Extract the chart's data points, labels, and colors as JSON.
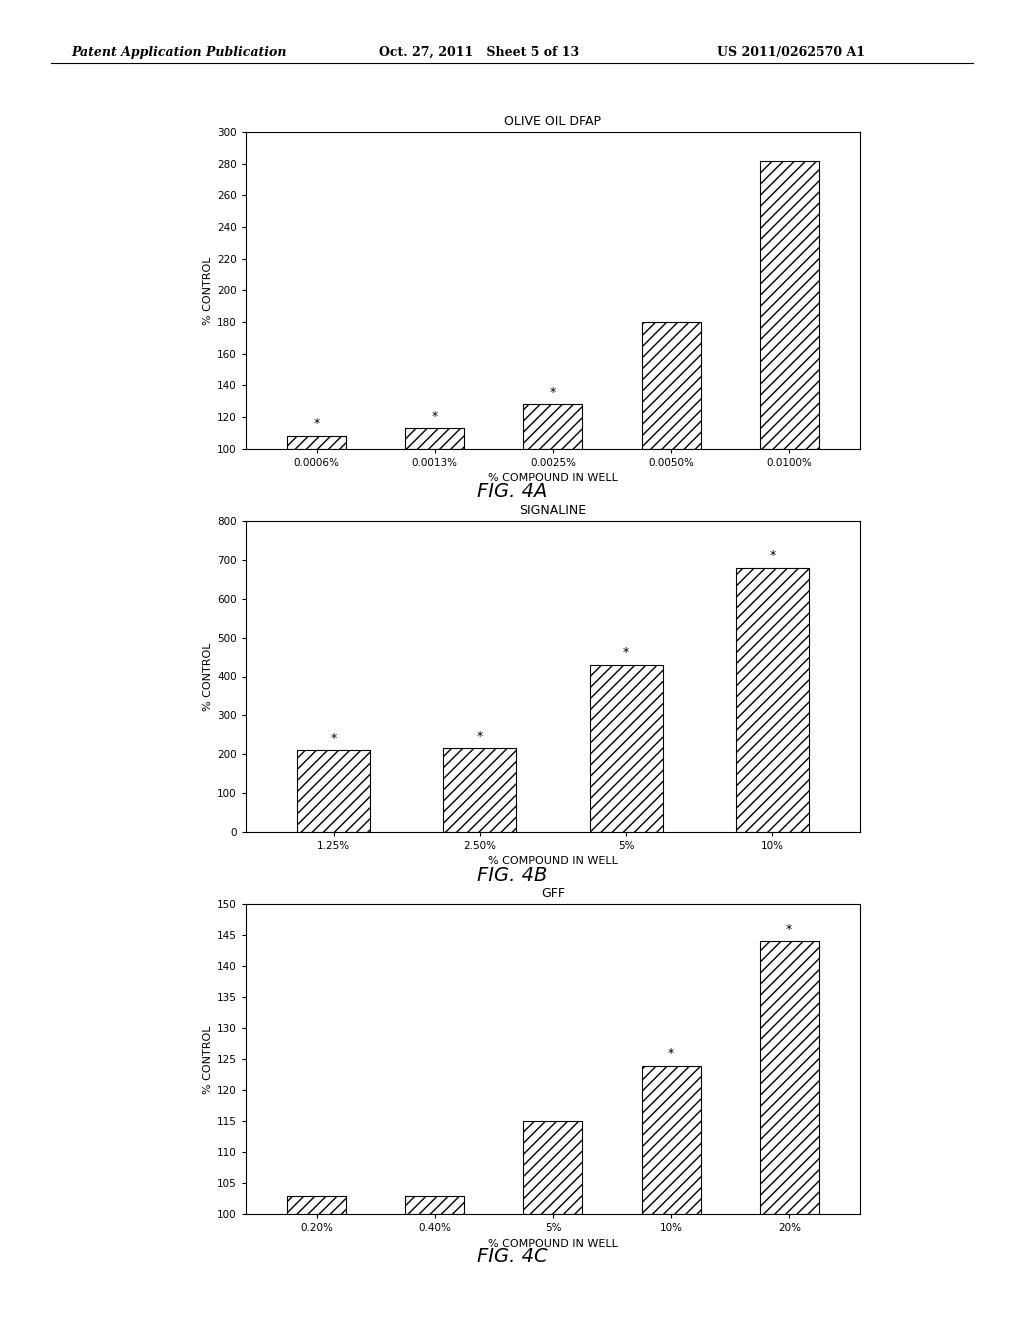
{
  "fig4a": {
    "title": "OLIVE OIL DFAP",
    "categories": [
      "0.0006%",
      "0.0013%",
      "0.0025%",
      "0.0050%",
      "0.0100%"
    ],
    "values": [
      108,
      113,
      128,
      180,
      282
    ],
    "star_flags": [
      true,
      true,
      true,
      false,
      false
    ],
    "ylabel": "% CONTROL",
    "xlabel": "% COMPOUND IN WELL",
    "ylim": [
      100,
      300
    ],
    "yticks": [
      100,
      120,
      140,
      160,
      180,
      200,
      220,
      240,
      260,
      280,
      300
    ],
    "caption": "FIG. 4A"
  },
  "fig4b": {
    "title": "SIGNALINE",
    "categories": [
      "1.25%",
      "2.50%",
      "5%",
      "10%"
    ],
    "values": [
      210,
      215,
      430,
      680
    ],
    "star_flags": [
      true,
      true,
      true,
      true
    ],
    "ylabel": "% CONTROL",
    "xlabel": "% COMPOUND IN WELL",
    "ylim": [
      0,
      800
    ],
    "yticks": [
      0,
      100,
      200,
      300,
      400,
      500,
      600,
      700,
      800
    ],
    "caption": "FIG. 4B"
  },
  "fig4c": {
    "title": "GFF",
    "categories": [
      "0.20%",
      "0.40%",
      "5%",
      "10%",
      "20%"
    ],
    "values": [
      103,
      103,
      115,
      124,
      144
    ],
    "star_flags": [
      false,
      false,
      false,
      true,
      true
    ],
    "ylabel": "% CONTROL",
    "xlabel": "% COMPOUND IN WELL",
    "ylim": [
      100,
      150
    ],
    "yticks": [
      100,
      105,
      110,
      115,
      120,
      125,
      130,
      135,
      140,
      145,
      150
    ],
    "caption": "FIG. 4C"
  },
  "header_left": "Patent Application Publication",
  "header_center": "Oct. 27, 2011   Sheet 5 of 13",
  "header_right": "US 2011/0262570 A1",
  "bar_color": "white",
  "bar_edgecolor": "black",
  "hatch_pattern": "///",
  "background_color": "white"
}
